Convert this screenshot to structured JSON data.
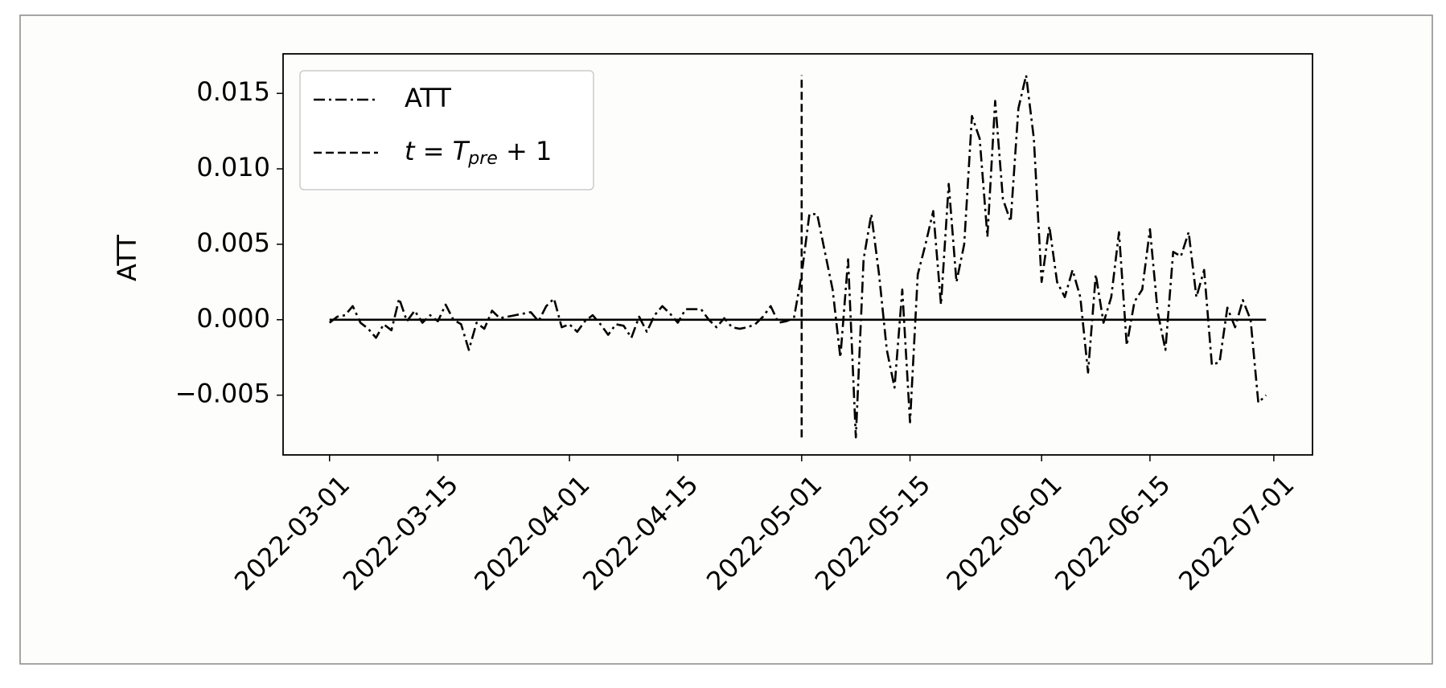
{
  "chart_data": {
    "type": "line",
    "y_label": "ATT",
    "x": [
      "2022-03-01",
      "2022-03-02",
      "2022-03-03",
      "2022-03-04",
      "2022-03-05",
      "2022-03-06",
      "2022-03-07",
      "2022-03-08",
      "2022-03-09",
      "2022-03-10",
      "2022-03-11",
      "2022-03-12",
      "2022-03-13",
      "2022-03-14",
      "2022-03-15",
      "2022-03-16",
      "2022-03-17",
      "2022-03-18",
      "2022-03-19",
      "2022-03-20",
      "2022-03-21",
      "2022-03-22",
      "2022-03-23",
      "2022-03-24",
      "2022-03-25",
      "2022-03-26",
      "2022-03-27",
      "2022-03-28",
      "2022-03-29",
      "2022-03-30",
      "2022-03-31",
      "2022-04-01",
      "2022-04-02",
      "2022-04-03",
      "2022-04-04",
      "2022-04-05",
      "2022-04-06",
      "2022-04-07",
      "2022-04-08",
      "2022-04-09",
      "2022-04-10",
      "2022-04-11",
      "2022-04-12",
      "2022-04-13",
      "2022-04-14",
      "2022-04-15",
      "2022-04-16",
      "2022-04-17",
      "2022-04-18",
      "2022-04-19",
      "2022-04-20",
      "2022-04-21",
      "2022-04-22",
      "2022-04-23",
      "2022-04-24",
      "2022-04-25",
      "2022-04-26",
      "2022-04-27",
      "2022-04-28",
      "2022-04-29",
      "2022-04-30",
      "2022-05-01",
      "2022-05-02",
      "2022-05-03",
      "2022-05-04",
      "2022-05-05",
      "2022-05-06",
      "2022-05-07",
      "2022-05-08",
      "2022-05-09",
      "2022-05-10",
      "2022-05-11",
      "2022-05-12",
      "2022-05-13",
      "2022-05-14",
      "2022-05-15",
      "2022-05-16",
      "2022-05-17",
      "2022-05-18",
      "2022-05-19",
      "2022-05-20",
      "2022-05-21",
      "2022-05-22",
      "2022-05-23",
      "2022-05-24",
      "2022-05-25",
      "2022-05-26",
      "2022-05-27",
      "2022-05-28",
      "2022-05-29",
      "2022-05-30",
      "2022-05-31",
      "2022-06-01",
      "2022-06-02",
      "2022-06-03",
      "2022-06-04",
      "2022-06-05",
      "2022-06-06",
      "2022-06-07",
      "2022-06-08",
      "2022-06-09",
      "2022-06-10",
      "2022-06-11",
      "2022-06-12",
      "2022-06-13",
      "2022-06-14",
      "2022-06-15",
      "2022-06-16",
      "2022-06-17",
      "2022-06-18",
      "2022-06-19",
      "2022-06-20",
      "2022-06-21",
      "2022-06-22",
      "2022-06-23",
      "2022-06-24",
      "2022-06-25",
      "2022-06-26",
      "2022-06-27",
      "2022-06-28",
      "2022-06-29",
      "2022-06-30"
    ],
    "series": [
      {
        "name": "ATT",
        "color": "#000000",
        "values": [
          -0.0002,
          0.0002,
          0.0003,
          0.0009,
          -0.0002,
          -0.0006,
          -0.0012,
          -0.0003,
          -0.0007,
          0.0014,
          -0.0001,
          0.0006,
          -0.0002,
          0.0003,
          -0.0001,
          0.001,
          0.0,
          -0.0003,
          -0.002,
          -0.0002,
          -0.0006,
          0.0006,
          0.0001,
          0.0002,
          0.0003,
          0.0004,
          0.0005,
          -0.0001,
          0.0009,
          0.0014,
          -0.0005,
          -0.0003,
          -0.0008,
          -0.0001,
          0.0003,
          -0.0003,
          -0.001,
          -0.0003,
          -0.0004,
          -0.0012,
          0.0002,
          -0.0008,
          0.0003,
          0.0009,
          0.0004,
          -0.0002,
          0.0007,
          0.0007,
          0.0007,
          0.0,
          -0.0005,
          0.0001,
          -0.0005,
          -0.0006,
          -0.0005,
          -0.0003,
          0.0002,
          0.0009,
          -0.0002,
          -0.0001,
          0.0001,
          0.003,
          0.007,
          0.007,
          0.0045,
          0.002,
          -0.0025,
          0.004,
          -0.0078,
          0.004,
          0.007,
          0.003,
          -0.002,
          -0.0045,
          0.002,
          -0.0068,
          0.003,
          0.005,
          0.0072,
          0.001,
          0.009,
          0.0025,
          0.005,
          0.0135,
          0.012,
          0.0055,
          0.0145,
          0.008,
          0.0065,
          0.014,
          0.0162,
          0.012,
          0.0025,
          0.0062,
          0.0025,
          0.0015,
          0.0033,
          0.0015,
          -0.0035,
          0.003,
          -0.0002,
          0.0015,
          0.0058,
          -0.0017,
          0.0012,
          0.002,
          0.006,
          0.0005,
          -0.002,
          0.0045,
          0.0042,
          0.0058,
          0.0015,
          0.0033,
          -0.003,
          -0.0028,
          0.0008,
          -0.0005,
          0.0013,
          0.0,
          -0.0055,
          -0.005
        ]
      }
    ],
    "vline": {
      "label_parts": [
        "t",
        " = ",
        "T",
        "pre",
        " + 1"
      ],
      "x": "2022-05-01",
      "ymin": -0.0078,
      "ymax": 0.0162,
      "color": "#000000"
    },
    "hline": {
      "y": 0,
      "xmin": "2022-03-01",
      "xmax": "2022-06-30",
      "color": "#000000"
    },
    "xlim": [
      "2022-02-23",
      "2022-07-06"
    ],
    "xticks": [
      "2022-03-01",
      "2022-03-15",
      "2022-04-01",
      "2022-04-15",
      "2022-05-01",
      "2022-05-15",
      "2022-06-01",
      "2022-06-15",
      "2022-07-01"
    ],
    "ylim": [
      -0.00896,
      0.01762
    ],
    "yticks": [
      {
        "value": -0.005,
        "label": "−0.005"
      },
      {
        "value": 0,
        "label": "0.000"
      },
      0.005,
      {
        "value": 0.01,
        "label": "0.010"
      },
      0.015
    ],
    "legend": "upper left"
  }
}
